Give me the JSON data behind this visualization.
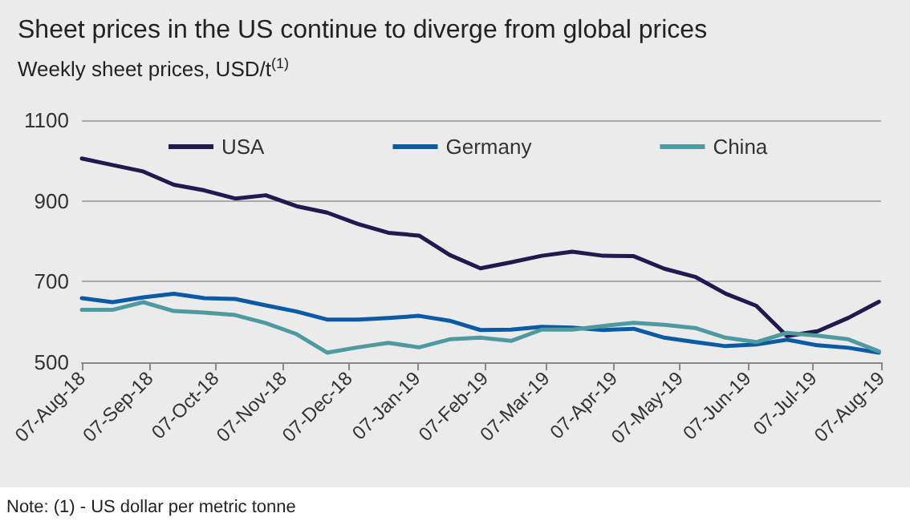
{
  "chart_data": {
    "type": "line",
    "title": "Sheet prices in the US continue to diverge from global prices",
    "subtitle": "Weekly sheet prices, USD/t$^{(1)}$",
    "annotations": [
      "Note: (1) - US dollar per metric tonne"
    ],
    "x": [
      "2018-08-07",
      "2018-08-21",
      "2018-09-04",
      "2018-09-18",
      "2018-10-02",
      "2018-10-16",
      "2018-10-30",
      "2018-11-13",
      "2018-11-27",
      "2018-12-11",
      "2018-12-25",
      "2019-01-08",
      "2019-01-22",
      "2019-02-05",
      "2019-02-19",
      "2019-03-05",
      "2019-03-19",
      "2019-04-02",
      "2019-04-16",
      "2019-04-30",
      "2019-05-14",
      "2019-05-28",
      "2019-06-11",
      "2019-06-25",
      "2019-07-09",
      "2019-07-23",
      "2019-08-06"
    ],
    "series": [
      {
        "name": "USA",
        "color": "#201a4f",
        "values": [
          1005,
          989,
          973,
          940,
          926,
          906,
          914,
          887,
          871,
          843,
          821,
          814,
          766,
          733,
          748,
          764,
          774,
          764,
          763,
          732,
          712,
          670,
          640,
          565,
          577,
          610,
          650
        ]
      },
      {
        "name": "Germany",
        "color": "#0b5aa6",
        "values": [
          659,
          649,
          661,
          670,
          659,
          657,
          641,
          626,
          606,
          606,
          610,
          615,
          603,
          580,
          581,
          588,
          586,
          580,
          583,
          561,
          550,
          540,
          544,
          556,
          542,
          536,
          524
        ]
      },
      {
        "name": "China",
        "color": "#4f9a9f",
        "values": [
          630,
          630,
          649,
          627,
          623,
          617,
          597,
          570,
          524,
          537,
          548,
          537,
          557,
          561,
          553,
          581,
          581,
          590,
          598,
          593,
          585,
          561,
          550,
          573,
          566,
          557,
          527
        ]
      }
    ],
    "xlim": [
      "2018-08-07",
      "2019-08-07"
    ],
    "xticks": [
      {
        "value": "2018-08-07",
        "label": "07-Aug-18"
      },
      {
        "value": "2018-09-07",
        "label": "07-Sep-18"
      },
      {
        "value": "2018-10-07",
        "label": "07-Oct-18"
      },
      {
        "value": "2018-11-07",
        "label": "07-Nov-18"
      },
      {
        "value": "2018-12-07",
        "label": "07-Dec-18"
      },
      {
        "value": "2019-01-07",
        "label": "07-Jan-19"
      },
      {
        "value": "2019-02-07",
        "label": "07-Feb-19"
      },
      {
        "value": "2019-03-07",
        "label": "07-Mar-19"
      },
      {
        "value": "2019-04-07",
        "label": "07-Apr-19"
      },
      {
        "value": "2019-05-07",
        "label": "07-May-19"
      },
      {
        "value": "2019-06-07",
        "label": "07-Jun-19"
      },
      {
        "value": "2019-07-07",
        "label": "07-Jul-19"
      },
      {
        "value": "2019-08-07",
        "label": "07-Aug-19"
      }
    ],
    "ylim": [
      500,
      1100
    ],
    "yticks": [
      500,
      700,
      900,
      1100
    ],
    "grid": "y",
    "legend": "top",
    "marker": "none",
    "line_style": "solid"
  }
}
